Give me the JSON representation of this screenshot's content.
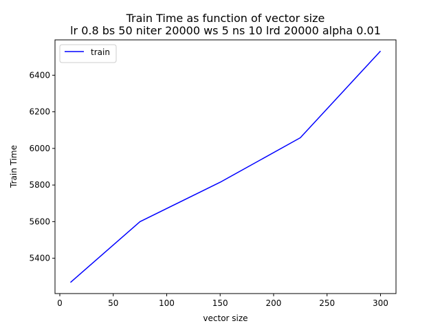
{
  "chart_data": {
    "type": "line",
    "title": "Train Time as function of vector size",
    "subtitle": "lr 0.8 bs 50 niter 20000 ws 5 ns 10 lrd 20000 alpha 0.01",
    "xlabel": "vector size",
    "ylabel": "Train Time",
    "xlim": [
      -4.5,
      314.5
    ],
    "ylim": [
      5207,
      6593
    ],
    "xticks": [
      0,
      50,
      100,
      150,
      200,
      250,
      300
    ],
    "yticks": [
      5400,
      5600,
      5800,
      6000,
      6200,
      6400
    ],
    "grid": false,
    "legend_position": "top-left",
    "series": [
      {
        "name": "train",
        "color": "#0000ff",
        "x": [
          10,
          75,
          150,
          225,
          300
        ],
        "y": [
          5268,
          5600,
          5815,
          6058,
          6532
        ]
      }
    ]
  }
}
